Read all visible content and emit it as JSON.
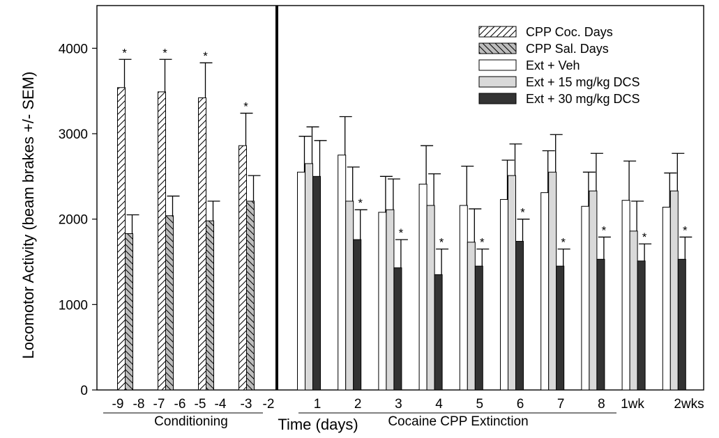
{
  "chart_data": {
    "type": "bar",
    "ylabel": "Locomotor Activity (beam brakes +/- SEM)",
    "xlabel": "Time (days)",
    "ylim": [
      0,
      4500
    ],
    "yticks": [
      0,
      1000,
      2000,
      3000,
      4000
    ],
    "grid": false,
    "legend_position": "top-right",
    "group_labels": {
      "conditioning": "Conditioning",
      "extinction": "Cocaine CPP Extinction"
    },
    "legend": [
      {
        "key": "coc",
        "name": "CPP Coc. Days"
      },
      {
        "key": "sal",
        "name": "CPP Sal. Days"
      },
      {
        "key": "veh",
        "name": "Ext + Veh"
      },
      {
        "key": "dcs15",
        "name": "Ext + 15 mg/kg DCS"
      },
      {
        "key": "dcs30",
        "name": "Ext + 30 mg/kg DCS"
      }
    ],
    "conditioning": {
      "day_labels": [
        "-9",
        "-8",
        "-7",
        "-6",
        "-5",
        "-4",
        "-3",
        "-2"
      ],
      "cocaine": {
        "values": [
          3540,
          3490,
          3420,
          2860
        ],
        "sem": [
          330,
          380,
          410,
          380
        ],
        "significant": [
          true,
          true,
          true,
          true
        ]
      },
      "saline": {
        "values": [
          1830,
          2040,
          1980,
          2210
        ],
        "sem": [
          220,
          230,
          230,
          300
        ]
      }
    },
    "extinction": {
      "categories": [
        "1",
        "2",
        "3",
        "4",
        "5",
        "6",
        "7",
        "8",
        "1wk",
        "2wks"
      ],
      "series": [
        {
          "key": "veh",
          "name": "Ext + Veh",
          "values": [
            2550,
            2750,
            2080,
            2410,
            2160,
            2230,
            2310,
            2150,
            2220,
            2140
          ],
          "sem": [
            420,
            450,
            420,
            450,
            460,
            460,
            490,
            400,
            460,
            400
          ]
        },
        {
          "key": "dcs15",
          "name": "Ext + 15 mg/kg DCS",
          "values": [
            2650,
            2210,
            2110,
            2160,
            1730,
            2510,
            2550,
            2330,
            1860,
            2330
          ],
          "sem": [
            430,
            400,
            360,
            370,
            390,
            370,
            440,
            440,
            350,
            440
          ]
        },
        {
          "key": "dcs30",
          "name": "Ext + 30 mg/kg DCS",
          "values": [
            2500,
            1760,
            1430,
            1350,
            1450,
            1740,
            1450,
            1530,
            1510,
            1530
          ],
          "sem": [
            420,
            350,
            330,
            300,
            200,
            260,
            200,
            260,
            200,
            260
          ],
          "significant": [
            false,
            true,
            true,
            true,
            true,
            true,
            true,
            true,
            true,
            true
          ]
        }
      ]
    },
    "significance_marker": "*"
  }
}
